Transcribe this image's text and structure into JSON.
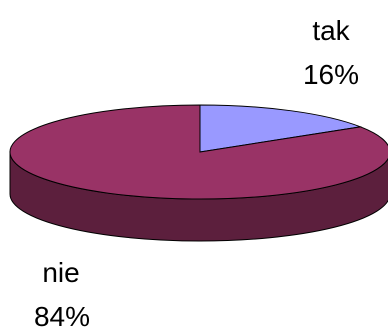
{
  "chart_data": {
    "type": "pie",
    "style": "3d",
    "slices": [
      {
        "label": "tak",
        "percent_label": "16%",
        "value": 16,
        "color": "#9999ff",
        "side_color": "#5a5a96"
      },
      {
        "label": "nie",
        "percent_label": "84%",
        "value": 84,
        "color": "#993366",
        "side_color": "#5c1f3d"
      }
    ]
  }
}
